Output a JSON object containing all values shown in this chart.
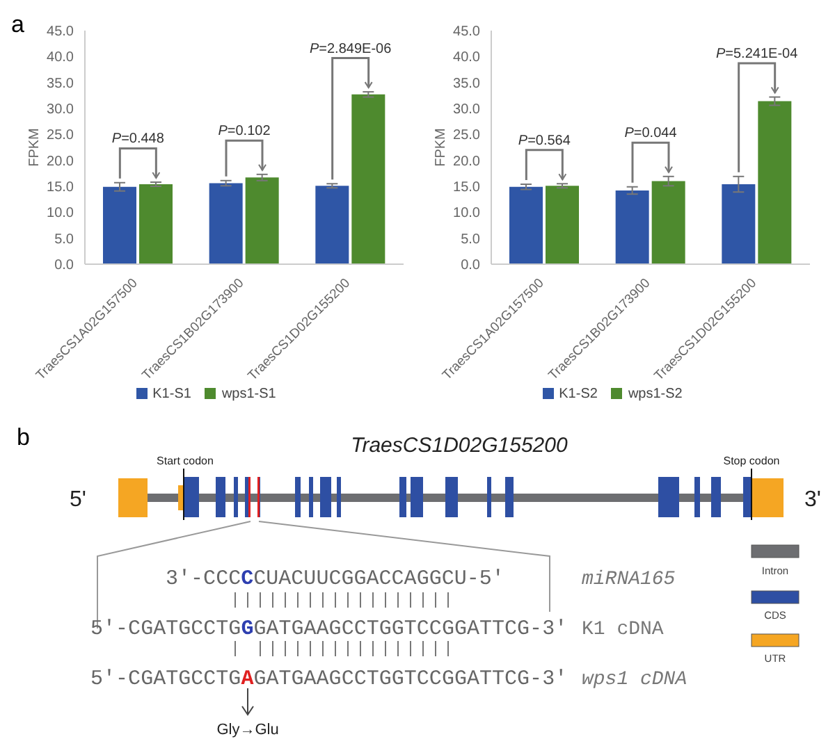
{
  "chart_data": [
    {
      "type": "bar",
      "categories": [
        "TraesCS1A02G157500",
        "TraesCS1B02G173900",
        "TraesCS1D02G155200"
      ],
      "ylabel": "FPKM",
      "ylim": [
        0,
        45
      ],
      "yticks": [
        {
          "value": 0,
          "label": "0.0"
        },
        {
          "value": 5,
          "label": "5.0"
        },
        {
          "value": 10,
          "label": "10.0"
        },
        {
          "value": 15,
          "label": "15.0"
        },
        {
          "value": 20,
          "label": "20.0"
        },
        {
          "value": 25,
          "label": "25.0"
        },
        {
          "value": 30,
          "label": "30.0"
        },
        {
          "value": 35,
          "label": "35.0"
        },
        {
          "value": 40,
          "label": "40.0"
        },
        {
          "value": 45,
          "label": "45.0"
        }
      ],
      "legend": "bottom",
      "series": [
        {
          "name": "K1-S1",
          "color": "#2f56a6",
          "values": [
            14.9,
            15.6,
            15.1
          ],
          "errors": [
            0.8,
            0.5,
            0.4
          ]
        },
        {
          "name": "wps1-S1",
          "color": "#4e8a2e",
          "values": [
            15.4,
            16.7,
            32.7
          ],
          "errors": [
            0.4,
            0.6,
            0.5
          ]
        }
      ],
      "annotations": [
        "a",
        "P=0.448",
        "P=0.102",
        "P=2.849E-06"
      ]
    },
    {
      "type": "bar",
      "categories": [
        "TraesCS1A02G157500",
        "TraesCS1B02G173900",
        "TraesCS1D02G155200"
      ],
      "ylabel": "FPKM",
      "ylim": [
        0,
        45
      ],
      "yticks": [
        {
          "value": 0,
          "label": "0.0"
        },
        {
          "value": 5,
          "label": "5.0"
        },
        {
          "value": 10,
          "label": "10.0"
        },
        {
          "value": 15,
          "label": "15.0"
        },
        {
          "value": 20,
          "label": "20.0"
        },
        {
          "value": 25,
          "label": "25.0"
        },
        {
          "value": 30,
          "label": "30.0"
        },
        {
          "value": 35,
          "label": "35.0"
        },
        {
          "value": 40,
          "label": "40.0"
        },
        {
          "value": 45,
          "label": "45.0"
        }
      ],
      "legend": "bottom",
      "series": [
        {
          "name": "K1-S2",
          "color": "#2f56a6",
          "values": [
            14.9,
            14.2,
            15.4
          ],
          "errors": [
            0.5,
            0.7,
            1.5
          ]
        },
        {
          "name": "wps1-S2",
          "color": "#4e8a2e",
          "values": [
            15.1,
            16.0,
            31.4
          ],
          "errors": [
            0.4,
            0.9,
            0.8
          ]
        }
      ],
      "annotations": [
        "P=0.564",
        "P=0.044",
        "P=5.241E-04"
      ]
    },
    {
      "type": "other",
      "title": "TraesCS1D02G155200",
      "annotations": [
        "b",
        "Start codon",
        "Stop codon",
        "5'",
        "3'",
        "3'-CCCCCUACUUCGGACCAGGCU-5'",
        "miRNA165",
        "5'-CGATGCCTGGGATGAAGCCTGGTCCGGATTCG-3'",
        "K1 cDNA",
        "5'-CGATGCCTGAGATGAAGCCTGGTCCGGATTCG-3'",
        "wps1 cDNA",
        "Gly→Glu",
        "Intron",
        "CDS",
        "UTR"
      ]
    }
  ]
}
